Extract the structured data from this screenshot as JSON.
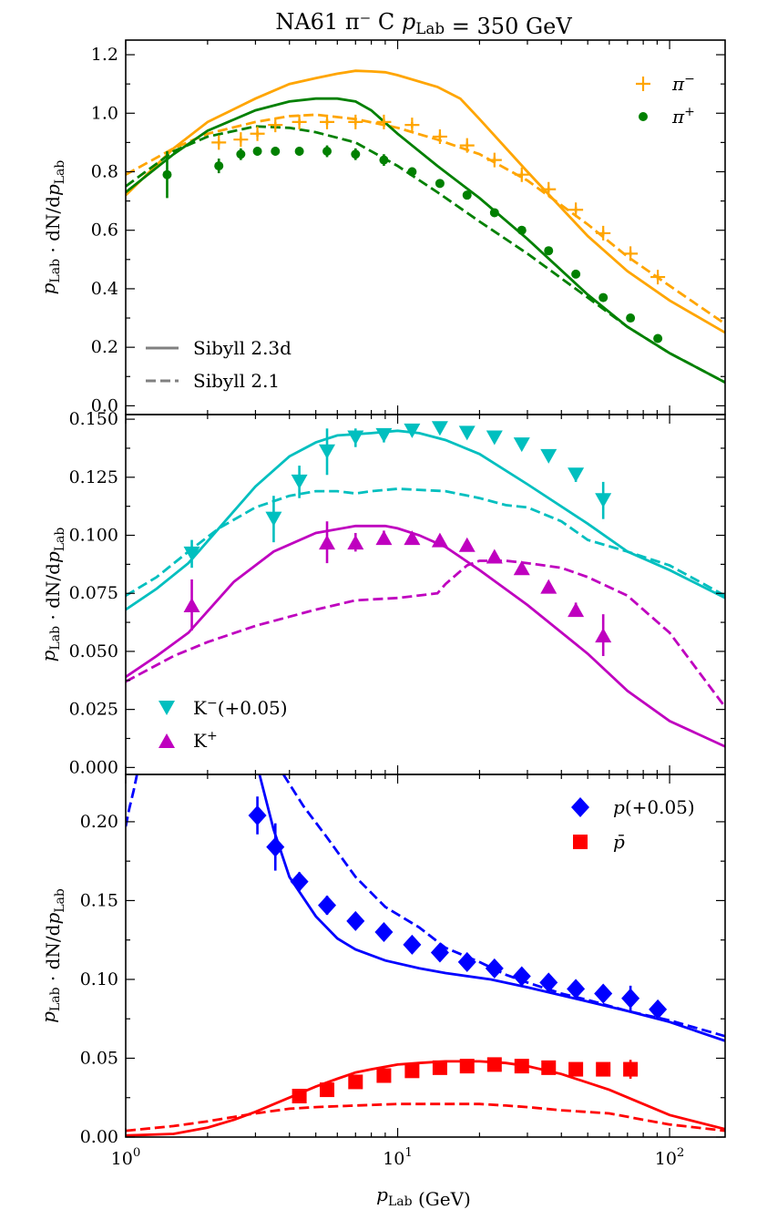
{
  "figure": {
    "title": "NA61 π⁻ C p_Lab = 350 GeV",
    "xlabel": "p_Lab (GeV)",
    "ylabel": "p_Lab · dN/dp_Lab",
    "xticks": [
      "10⁰",
      "10¹",
      "10²"
    ]
  },
  "colors": {
    "pim": "#ffa500",
    "pip": "#008000",
    "km": "#00bfbf",
    "kp": "#bf00bf",
    "p": "#0000ff",
    "pbar": "#ff0000",
    "model": "#808080"
  },
  "chart_data": [
    {
      "type": "line",
      "panel": "pions",
      "xscale": "log",
      "xlim": [
        1,
        160
      ],
      "ylim": [
        -0.03,
        1.25
      ],
      "yticks": [
        0.0,
        0.2,
        0.4,
        0.6,
        0.8,
        1.0,
        1.2
      ],
      "ytick_labels": [
        "0.0",
        "0.2",
        "0.4",
        "0.6",
        "0.8",
        "1.0",
        "1.2"
      ],
      "legend": [
        {
          "label": "π⁻",
          "marker": "plus",
          "color": "#ffa500"
        },
        {
          "label": "π⁺",
          "marker": "circle",
          "color": "#008000"
        }
      ],
      "model_legend": [
        {
          "label": "Sibyll 2.3d",
          "dash": "solid"
        },
        {
          "label": "Sibyll 2.1",
          "dash": "dashed"
        }
      ],
      "points": [
        {
          "name": "pi-minus",
          "marker": "plus",
          "color": "#ffa500",
          "x": [
            2.2,
            2.65,
            3.05,
            3.55,
            4.35,
            5.5,
            7.0,
            8.9,
            11.3,
            14.3,
            18.0,
            22.7,
            28.6,
            35.9,
            45.2,
            57.0,
            71.8,
            90.5
          ],
          "y": [
            0.9,
            0.91,
            0.93,
            0.96,
            0.97,
            0.97,
            0.97,
            0.97,
            0.96,
            0.92,
            0.89,
            0.84,
            0.79,
            0.74,
            0.67,
            0.59,
            0.52,
            0.44
          ],
          "err": [
            0.01,
            0.01,
            0.01,
            0.01,
            0.01,
            0.01,
            0.01,
            0.01,
            0.01,
            0.01,
            0.01,
            0.01,
            0.01,
            0.01,
            0.01,
            0.01,
            0.01,
            0.01
          ]
        },
        {
          "name": "pi-plus",
          "marker": "circle",
          "color": "#008000",
          "x": [
            1.42,
            2.2,
            2.65,
            3.05,
            3.55,
            4.35,
            5.5,
            7.0,
            8.9,
            11.3,
            14.3,
            18.0,
            22.7,
            28.6,
            35.9,
            45.2,
            57.0,
            71.8,
            90.5
          ],
          "y": [
            0.79,
            0.82,
            0.86,
            0.87,
            0.87,
            0.87,
            0.87,
            0.86,
            0.84,
            0.8,
            0.76,
            0.72,
            0.66,
            0.6,
            0.53,
            0.45,
            0.37,
            0.3,
            0.23
          ],
          "err": [
            0.08,
            0.025,
            0.02,
            0.015,
            0.015,
            0.015,
            0.02,
            0.02,
            0.02,
            0.015,
            0.01,
            0.01,
            0.01,
            0.01,
            0.01,
            0.01,
            0.01,
            0.01,
            0.01
          ]
        }
      ],
      "curves": [
        {
          "name": "pi-minus-sibyll-2.3d",
          "color": "#ffa500",
          "dash": "solid",
          "x": [
            1,
            1.5,
            2,
            3,
            4,
            5,
            6,
            7,
            8,
            9,
            10,
            14,
            17,
            20,
            30,
            50,
            70,
            100,
            160
          ],
          "y": [
            0.72,
            0.88,
            0.97,
            1.05,
            1.1,
            1.12,
            1.135,
            1.145,
            1.143,
            1.14,
            1.13,
            1.09,
            1.05,
            0.98,
            0.8,
            0.58,
            0.46,
            0.36,
            0.25
          ]
        },
        {
          "name": "pi-minus-sibyll-2.1",
          "color": "#ffa500",
          "dash": "dashed",
          "x": [
            1,
            1.5,
            2,
            3,
            4,
            5,
            7,
            10,
            14,
            20,
            30,
            50,
            70,
            100,
            160
          ],
          "y": [
            0.79,
            0.88,
            0.93,
            0.97,
            0.99,
            0.995,
            0.98,
            0.95,
            0.91,
            0.86,
            0.77,
            0.62,
            0.51,
            0.41,
            0.28
          ]
        },
        {
          "name": "pi-plus-sibyll-2.3d",
          "color": "#008000",
          "dash": "solid",
          "x": [
            1,
            1.5,
            2,
            3,
            4,
            5,
            6,
            7,
            8,
            10,
            14,
            20,
            30,
            50,
            70,
            100,
            160
          ],
          "y": [
            0.73,
            0.86,
            0.94,
            1.01,
            1.04,
            1.05,
            1.05,
            1.04,
            1.01,
            0.93,
            0.82,
            0.71,
            0.57,
            0.38,
            0.27,
            0.18,
            0.08
          ]
        },
        {
          "name": "pi-plus-sibyll-2.1",
          "color": "#008000",
          "dash": "dashed",
          "x": [
            1,
            1.5,
            2,
            3,
            4,
            5,
            7,
            10,
            14,
            20,
            30,
            50,
            70,
            100,
            160
          ],
          "y": [
            0.75,
            0.87,
            0.92,
            0.955,
            0.95,
            0.935,
            0.9,
            0.82,
            0.73,
            0.63,
            0.52,
            0.37,
            0.27,
            0.18,
            0.08
          ]
        }
      ]
    },
    {
      "type": "line",
      "panel": "kaons",
      "xscale": "log",
      "xlim": [
        1,
        160
      ],
      "ylim": [
        -0.003,
        0.152
      ],
      "yticks": [
        0.0,
        0.025,
        0.05,
        0.075,
        0.1,
        0.125,
        0.15
      ],
      "ytick_labels": [
        "0.000",
        "0.025",
        "0.050",
        "0.075",
        "0.100",
        "0.125",
        "0.150"
      ],
      "legend": [
        {
          "label": "K⁻(+0.05)",
          "marker": "triangle-down",
          "color": "#00bfbf"
        },
        {
          "label": "K⁺",
          "marker": "triangle-up",
          "color": "#bf00bf"
        }
      ],
      "points": [
        {
          "name": "k-minus",
          "marker": "triangle-down",
          "color": "#00bfbf",
          "x": [
            1.75,
            3.5,
            4.35,
            5.5,
            7.0,
            8.9,
            11.3,
            14.3,
            18.0,
            22.7,
            28.6,
            35.9,
            45.2,
            57.0
          ],
          "y": [
            0.092,
            0.107,
            0.123,
            0.136,
            0.142,
            0.143,
            0.145,
            0.146,
            0.144,
            0.142,
            0.139,
            0.134,
            0.126,
            0.115
          ],
          "err": [
            0.006,
            0.01,
            0.007,
            0.01,
            0.004,
            0.003,
            0.002,
            0.002,
            0.002,
            0.002,
            0.002,
            0.002,
            0.003,
            0.008
          ]
        },
        {
          "name": "k-plus",
          "marker": "triangle-up",
          "color": "#bf00bf",
          "x": [
            1.75,
            5.5,
            7.0,
            8.9,
            11.3,
            14.3,
            18.0,
            22.7,
            28.6,
            35.9,
            45.2,
            57.0
          ],
          "y": [
            0.07,
            0.097,
            0.097,
            0.099,
            0.099,
            0.098,
            0.096,
            0.091,
            0.086,
            0.078,
            0.068,
            0.057
          ],
          "err": [
            0.011,
            0.009,
            0.004,
            0.003,
            0.002,
            0.002,
            0.002,
            0.002,
            0.002,
            0.002,
            0.003,
            0.009
          ]
        }
      ],
      "curves": [
        {
          "name": "k-minus-sibyll-2.3d",
          "color": "#00bfbf",
          "dash": "solid",
          "x": [
            1,
            1.3,
            1.7,
            2.2,
            3,
            4,
            5,
            6,
            8,
            10,
            12,
            15,
            20,
            30,
            50,
            70,
            100,
            160
          ],
          "y": [
            0.068,
            0.077,
            0.088,
            0.103,
            0.121,
            0.134,
            0.14,
            0.143,
            0.144,
            0.145,
            0.144,
            0.141,
            0.135,
            0.122,
            0.105,
            0.093,
            0.085,
            0.073
          ]
        },
        {
          "name": "k-minus-sibyll-2.1",
          "color": "#00bfbf",
          "dash": "dashed",
          "x": [
            1,
            1.3,
            1.7,
            2.2,
            3,
            4,
            5,
            6,
            7,
            8,
            10,
            15,
            20,
            25,
            30,
            40,
            50,
            70,
            100,
            160
          ],
          "y": [
            0.074,
            0.082,
            0.093,
            0.103,
            0.112,
            0.117,
            0.119,
            0.119,
            0.118,
            0.119,
            0.12,
            0.119,
            0.116,
            0.113,
            0.112,
            0.106,
            0.098,
            0.093,
            0.087,
            0.074
          ]
        },
        {
          "name": "k-plus-sibyll-2.3d",
          "color": "#bf00bf",
          "dash": "solid",
          "x": [
            1,
            1.3,
            1.7,
            2.5,
            3.5,
            5,
            7,
            9,
            10,
            12,
            15,
            20,
            30,
            50,
            70,
            100,
            160
          ],
          "y": [
            0.039,
            0.048,
            0.058,
            0.08,
            0.093,
            0.101,
            0.104,
            0.104,
            0.103,
            0.1,
            0.095,
            0.085,
            0.07,
            0.049,
            0.033,
            0.02,
            0.009
          ]
        },
        {
          "name": "k-plus-sibyll-2.1",
          "color": "#bf00bf",
          "dash": "dashed",
          "x": [
            1,
            1.5,
            2,
            3,
            5,
            7,
            10,
            14,
            15,
            18,
            20,
            25,
            30,
            40,
            50,
            70,
            100,
            160
          ],
          "y": [
            0.037,
            0.048,
            0.054,
            0.061,
            0.068,
            0.072,
            0.073,
            0.075,
            0.079,
            0.087,
            0.089,
            0.089,
            0.088,
            0.086,
            0.082,
            0.074,
            0.058,
            0.026
          ]
        }
      ]
    },
    {
      "type": "line",
      "panel": "protons",
      "xscale": "log",
      "xlim": [
        1,
        160
      ],
      "ylim": [
        0.0,
        0.23
      ],
      "yticks": [
        0.0,
        0.05,
        0.1,
        0.15,
        0.2
      ],
      "ytick_labels": [
        "0.00",
        "0.05",
        "0.10",
        "0.15",
        "0.20"
      ],
      "legend": [
        {
          "label": "p(+0.05)",
          "marker": "diamond",
          "color": "#0000ff"
        },
        {
          "label": "p̄",
          "marker": "square",
          "color": "#ff0000"
        }
      ],
      "points": [
        {
          "name": "proton",
          "marker": "diamond",
          "color": "#0000ff",
          "x": [
            3.05,
            3.55,
            4.35,
            5.5,
            7.0,
            8.9,
            11.3,
            14.3,
            18.0,
            22.7,
            28.6,
            35.9,
            45.2,
            57.0,
            71.8,
            90.5
          ],
          "y": [
            0.204,
            0.184,
            0.162,
            0.147,
            0.137,
            0.13,
            0.122,
            0.117,
            0.111,
            0.107,
            0.102,
            0.098,
            0.094,
            0.091,
            0.088,
            0.081
          ],
          "err": [
            0.012,
            0.015,
            0.006,
            0.006,
            0.004,
            0.003,
            0.003,
            0.003,
            0.003,
            0.003,
            0.003,
            0.003,
            0.004,
            0.005,
            0.008,
            0.004
          ]
        },
        {
          "name": "anti-proton",
          "marker": "square",
          "color": "#ff0000",
          "x": [
            4.35,
            5.5,
            7.0,
            8.9,
            11.3,
            14.3,
            18.0,
            22.7,
            28.6,
            35.9,
            45.2,
            57.0,
            71.8
          ],
          "y": [
            0.026,
            0.03,
            0.035,
            0.039,
            0.042,
            0.044,
            0.045,
            0.046,
            0.045,
            0.044,
            0.043,
            0.043,
            0.043
          ],
          "err": [
            0.002,
            0.002,
            0.002,
            0.002,
            0.002,
            0.002,
            0.002,
            0.002,
            0.002,
            0.002,
            0.002,
            0.002,
            0.006
          ]
        }
      ],
      "curves": [
        {
          "name": "proton-sibyll-2.3d",
          "color": "#0000ff",
          "dash": "solid",
          "x": [
            3.0,
            3.5,
            4,
            5,
            6,
            7,
            9,
            12,
            15,
            22,
            30,
            50,
            70,
            100,
            160
          ],
          "y": [
            0.24,
            0.195,
            0.165,
            0.14,
            0.126,
            0.119,
            0.112,
            0.107,
            0.104,
            0.1,
            0.095,
            0.086,
            0.08,
            0.073,
            0.061
          ]
        },
        {
          "name": "proton-sibyll-2.1",
          "color": "#0000ff",
          "dash": "dashed",
          "x": [
            3.8,
            4.5,
            5.5,
            7,
            9,
            12,
            15,
            20,
            25,
            30,
            40,
            50,
            70,
            100,
            160
          ],
          "y": [
            0.23,
            0.21,
            0.19,
            0.165,
            0.146,
            0.133,
            0.12,
            0.111,
            0.103,
            0.098,
            0.091,
            0.087,
            0.08,
            0.074,
            0.064
          ]
        },
        {
          "name": "proton-sibyll-2.1-low",
          "color": "#0000ff",
          "dash": "dashed",
          "x": [
            1.0,
            1.03,
            1.07,
            1.1
          ],
          "y": [
            0.197,
            0.208,
            0.22,
            0.23
          ]
        },
        {
          "name": "anti-proton-sibyll-2.3d",
          "color": "#ff0000",
          "dash": "solid",
          "x": [
            1,
            1.5,
            2,
            2.5,
            3,
            4,
            5,
            6,
            7,
            8,
            10,
            12,
            15,
            20,
            25,
            30,
            40,
            60,
            80,
            100,
            160
          ],
          "y": [
            0.001,
            0.002,
            0.006,
            0.011,
            0.016,
            0.025,
            0.032,
            0.037,
            0.041,
            0.043,
            0.046,
            0.047,
            0.048,
            0.048,
            0.047,
            0.045,
            0.04,
            0.03,
            0.021,
            0.014,
            0.005
          ]
        },
        {
          "name": "anti-proton-sibyll-2.1",
          "color": "#ff0000",
          "dash": "dashed",
          "x": [
            1,
            1.5,
            2,
            3,
            4,
            5,
            7,
            10,
            15,
            20,
            25,
            30,
            40,
            60,
            80,
            100,
            160
          ],
          "y": [
            0.004,
            0.007,
            0.01,
            0.015,
            0.018,
            0.019,
            0.02,
            0.021,
            0.021,
            0.021,
            0.02,
            0.019,
            0.017,
            0.015,
            0.011,
            0.008,
            0.004
          ]
        }
      ]
    }
  ]
}
